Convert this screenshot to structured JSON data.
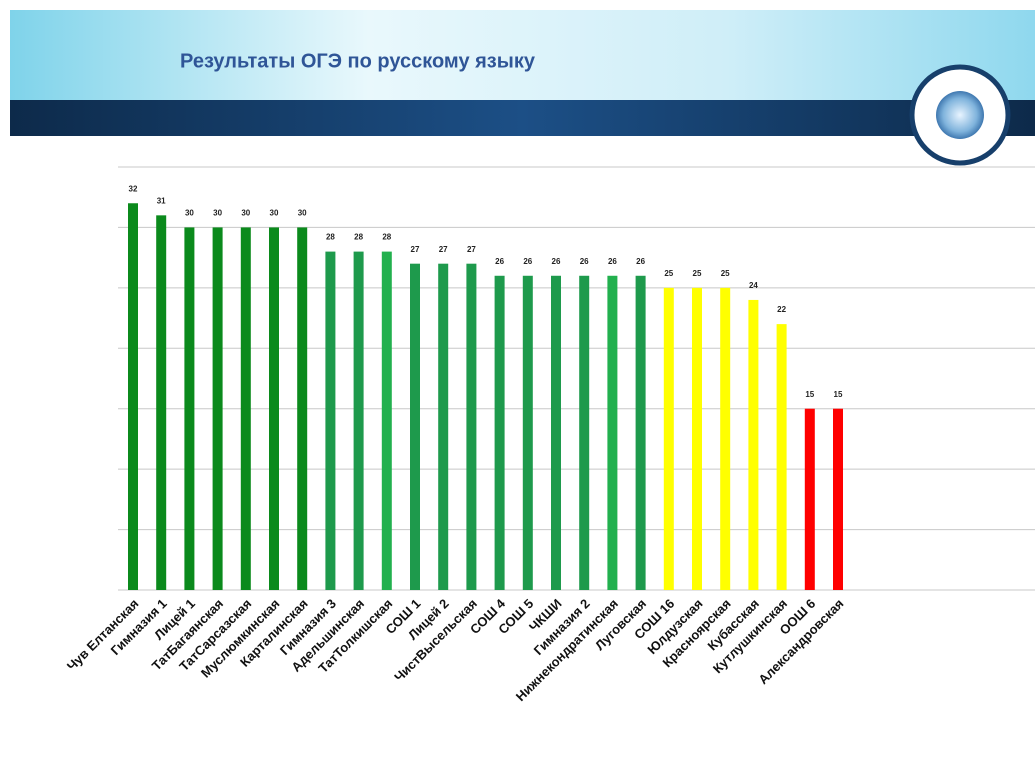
{
  "chart_data": {
    "type": "bar",
    "title": "Результаты ОГЭ по русскому языку",
    "categories": [
      "Чув Елтанская",
      "Гимназия 1",
      "Лицей 1",
      "ТатБагаянская",
      "ТатСарсазская",
      "Муслюмкинская",
      "Карталинская",
      "Гимназия 3",
      "Адельшинская",
      "ТатТолкишская",
      "СОШ 1",
      "Лицей 2",
      "ЧистВысельская",
      "СОШ 4",
      "СОШ 5",
      "ЧКШИ",
      "Гимназия 2",
      "Нижнекондратинская",
      "Луговская",
      "СОШ 16",
      "Юлдузская",
      "Красноярская",
      "Кубасская",
      "Кутлушкинская",
      "ООШ 6",
      "Александровская"
    ],
    "values": [
      32,
      31,
      30,
      30,
      30,
      30,
      30,
      28,
      28,
      28,
      27,
      27,
      27,
      26,
      26,
      26,
      26,
      26,
      26,
      25,
      25,
      25,
      24,
      22,
      15,
      15
    ],
    "colors": [
      "#0b8a1c",
      "#0b8a1c",
      "#0b8a1c",
      "#0b8a1c",
      "#0b8a1c",
      "#0b8a1c",
      "#0b8a1c",
      "#1e9a4c",
      "#1e9a4c",
      "#22b04e",
      "#1e9a4c",
      "#1e9a4c",
      "#1e9a4c",
      "#1e9a4c",
      "#1e9a4c",
      "#1e9a4c",
      "#1e9a4c",
      "#22b04e",
      "#1e9a4c",
      "#ffff00",
      "#ffff00",
      "#ffff00",
      "#ffff00",
      "#ffff00",
      "#ff0000",
      "#ff0000"
    ],
    "ylim": [
      0,
      35
    ],
    "yticks": [
      0,
      5,
      10,
      15,
      20,
      25,
      30,
      35
    ],
    "grid": true
  }
}
